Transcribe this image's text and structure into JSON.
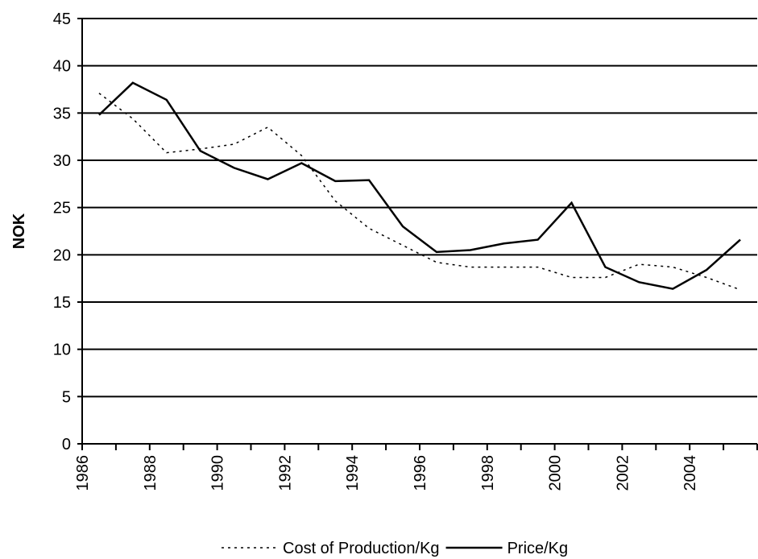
{
  "chart_data": {
    "type": "line",
    "y_label": "NOK",
    "categories": [
      "1986",
      null,
      "1988",
      null,
      "1990",
      null,
      "1992",
      null,
      "1994",
      null,
      "1996",
      null,
      "1998",
      null,
      "2000",
      null,
      "2002",
      null,
      "2004",
      null
    ],
    "series": [
      {
        "name": "Cost of Production/Kg",
        "color": "#000000",
        "dash": "dotted",
        "values": [
          37.1,
          34.4,
          30.8,
          31.2,
          31.7,
          33.5,
          30.5,
          25.7,
          22.8,
          21.0,
          19.2,
          18.7,
          18.7,
          18.7,
          17.6,
          17.6,
          19.0,
          18.7,
          17.6,
          16.3
        ]
      },
      {
        "name": "Price/Kg",
        "color": "#000000",
        "dash": "solid",
        "values": [
          34.8,
          38.2,
          36.4,
          31.0,
          29.2,
          28.0,
          29.7,
          27.8,
          27.9,
          23.0,
          20.3,
          20.5,
          21.2,
          21.6,
          25.5,
          18.7,
          17.1,
          16.4,
          18.4,
          21.6
        ]
      }
    ],
    "ylim": [
      0,
      45
    ],
    "yticks": [
      0,
      5,
      10,
      15,
      20,
      25,
      30,
      35,
      40,
      45
    ],
    "grid": true,
    "legend": "bottom"
  }
}
